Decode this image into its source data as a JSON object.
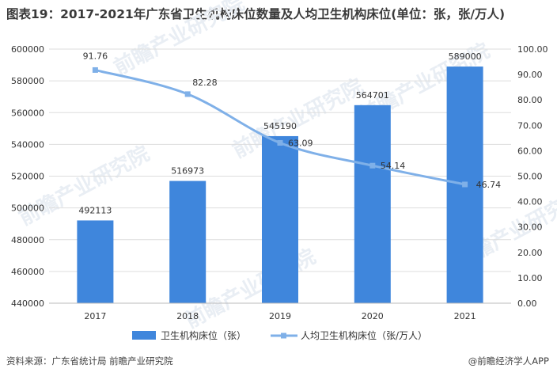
{
  "title": "图表19：2017-2021年广东省卫生机构床位数量及人均卫生机构床位(单位：张，张/万人)",
  "source": "资料来源：广东省统计局 前瞻产业研究院",
  "credit": "@前瞻经济学人APP",
  "watermark": "前瞻产业研究院",
  "colors": {
    "bar": "#3f86dc",
    "line": "#7fb0e8",
    "grid": "#dddddd",
    "text": "#333333"
  },
  "chart_data": {
    "type": "bar",
    "categories": [
      "2017",
      "2018",
      "2019",
      "2020",
      "2021"
    ],
    "series": [
      {
        "name": "卫生机构床位（张）",
        "type": "bar",
        "axis": "left",
        "values": [
          492113,
          516973,
          545190,
          564701,
          589000
        ],
        "labels": [
          "492113",
          "516973",
          "545190",
          "564701",
          "589000"
        ]
      },
      {
        "name": "人均卫生机构床位（张/万人）",
        "type": "line",
        "axis": "right",
        "values": [
          91.76,
          82.28,
          63.09,
          54.14,
          46.74
        ],
        "labels": [
          "91.76",
          "82.28",
          "63.09",
          "54.14",
          "46.74"
        ]
      }
    ],
    "y_left": {
      "min": 440000,
      "max": 600000,
      "step": 20000,
      "ticks": [
        "440000",
        "460000",
        "480000",
        "500000",
        "520000",
        "540000",
        "560000",
        "580000",
        "600000"
      ]
    },
    "y_right": {
      "min": 0,
      "max": 100,
      "step": 10,
      "ticks": [
        "0.00",
        "10.00",
        "20.00",
        "30.00",
        "40.00",
        "50.00",
        "60.00",
        "70.00",
        "80.00",
        "90.00",
        "100.00"
      ]
    },
    "grid": true,
    "legend_position": "bottom"
  }
}
